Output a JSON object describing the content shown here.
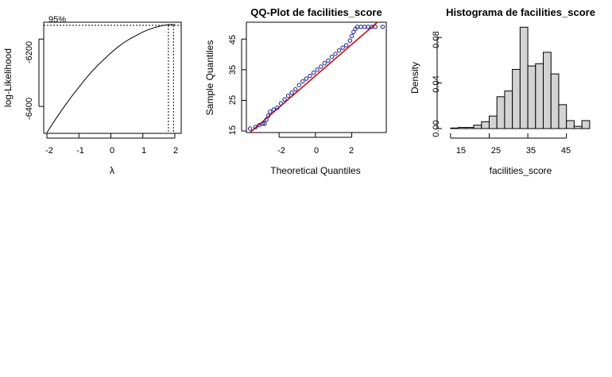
{
  "chart_data": [
    {
      "type": "line",
      "title": "",
      "xlabel": "λ",
      "ylabel": "log-Likelihood",
      "xlim": [
        -2.1,
        2.2
      ],
      "ylim": [
        -6480,
        -6150
      ],
      "xticks": [
        "-2",
        "-1",
        "0",
        "1",
        "2"
      ],
      "yticks": [
        "-6400",
        "-6200"
      ],
      "x": [
        -2.0,
        -1.8,
        -1.6,
        -1.4,
        -1.2,
        -1.0,
        -0.8,
        -0.6,
        -0.4,
        -0.2,
        0.0,
        0.2,
        0.4,
        0.6,
        0.8,
        1.0,
        1.2,
        1.4,
        1.6,
        1.8,
        2.0
      ],
      "y": [
        -6478,
        -6448,
        -6420,
        -6393,
        -6367,
        -6343,
        -6319,
        -6297,
        -6277,
        -6259,
        -6241,
        -6225,
        -6211,
        -6199,
        -6189,
        -6179,
        -6171,
        -6165,
        -6160,
        -6157,
        -6157
      ],
      "ci_label": "95%",
      "ci_level": -6159,
      "lambda_lines": [
        1.8,
        1.96
      ]
    },
    {
      "type": "scatter",
      "title": "QQ-Plot de facilities_score",
      "xlabel": "Theoretical Quantiles",
      "ylabel": "Sample Quantiles",
      "xlim": [
        -3.8,
        3.9
      ],
      "ylim": [
        14.5,
        50.5
      ],
      "xticks": [
        "-2",
        "0",
        "2"
      ],
      "yticks": [
        "15",
        "25",
        "35",
        "45"
      ],
      "points": [
        [
          -3.6,
          15.8
        ],
        [
          -3.3,
          16.3
        ],
        [
          -3.1,
          16.9
        ],
        [
          -2.9,
          17.4
        ],
        [
          -2.8,
          17.4
        ],
        [
          -2.7,
          18.7
        ],
        [
          -2.6,
          20.0
        ],
        [
          -2.5,
          21.3
        ],
        [
          -2.3,
          22.0
        ],
        [
          -2.1,
          22.6
        ],
        [
          -1.9,
          24.0
        ],
        [
          -1.7,
          25.3
        ],
        [
          -1.5,
          26.5
        ],
        [
          -1.3,
          27.5
        ],
        [
          -1.1,
          28.6
        ],
        [
          -0.9,
          30.0
        ],
        [
          -0.7,
          31.2
        ],
        [
          -0.5,
          32.1
        ],
        [
          -0.3,
          33.0
        ],
        [
          -0.1,
          34.0
        ],
        [
          0.1,
          35.0
        ],
        [
          0.3,
          36.0
        ],
        [
          0.5,
          37.1
        ],
        [
          0.7,
          38.0
        ],
        [
          0.9,
          39.2
        ],
        [
          1.1,
          40.2
        ],
        [
          1.3,
          41.3
        ],
        [
          1.5,
          42.2
        ],
        [
          1.7,
          43.0
        ],
        [
          1.9,
          44.5
        ],
        [
          2.0,
          46.0
        ],
        [
          2.1,
          47.3
        ],
        [
          2.2,
          48.3
        ],
        [
          2.3,
          49.0
        ],
        [
          2.5,
          49.0
        ],
        [
          2.7,
          49.0
        ],
        [
          2.9,
          49.0
        ],
        [
          3.1,
          49.0
        ],
        [
          3.3,
          49.0
        ],
        [
          3.7,
          49.0
        ]
      ],
      "ref_line": [
        [
          -3.6,
          14.5
        ],
        [
          3.7,
          52.0
        ]
      ]
    },
    {
      "type": "bar",
      "title": "Histograma de facilities_score",
      "xlabel": "facilities_score",
      "ylabel": "Density",
      "xlim": [
        14,
        50
      ],
      "ylim": [
        0,
        0.092
      ],
      "xticks": [
        "15",
        "25",
        "35",
        "45"
      ],
      "yticks": [
        "0.00",
        "0.04",
        "0.08"
      ],
      "bins": [
        [
          15,
          17
        ],
        [
          17,
          19
        ],
        [
          19,
          21
        ],
        [
          21,
          23
        ],
        [
          23,
          25
        ],
        [
          25,
          27
        ],
        [
          27,
          29
        ],
        [
          29,
          31
        ],
        [
          31,
          33
        ],
        [
          33,
          35
        ],
        [
          35,
          37
        ],
        [
          37,
          39
        ],
        [
          39,
          41
        ],
        [
          41,
          43
        ],
        [
          43,
          45
        ],
        [
          45,
          47
        ],
        [
          47,
          49
        ],
        [
          49,
          51
        ]
      ],
      "values": [
        0.0005,
        0.001,
        0.001,
        0.003,
        0.006,
        0.011,
        0.028,
        0.033,
        0.052,
        0.089,
        0.055,
        0.057,
        0.067,
        0.048,
        0.021,
        0.007,
        0.002,
        0.007
      ]
    }
  ]
}
